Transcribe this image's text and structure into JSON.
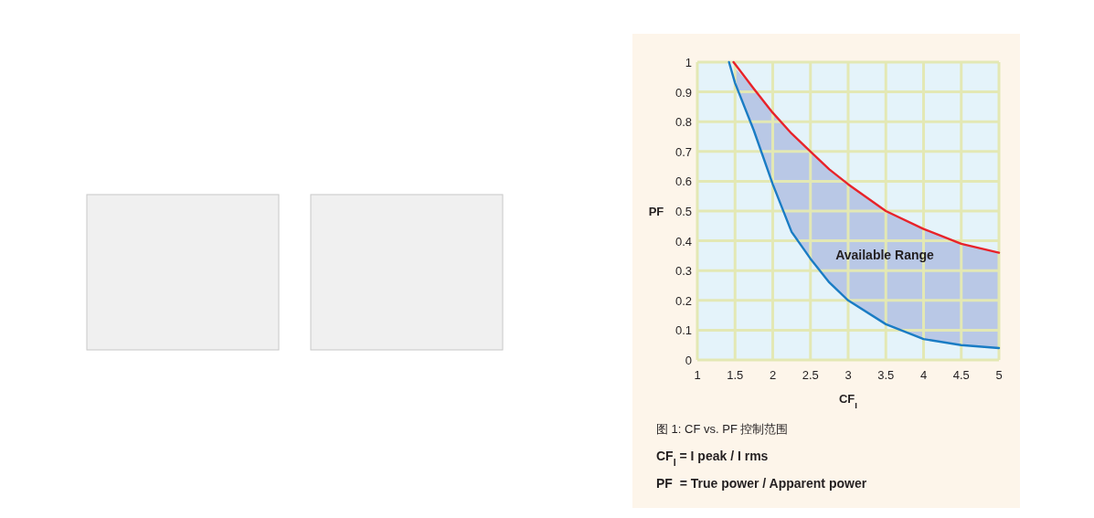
{
  "chart_data": {
    "type": "line",
    "xlabel": "CF$_{I}$",
    "ylabel": "PF",
    "xlim": [
      1,
      5
    ],
    "ylim": [
      0,
      1
    ],
    "xticks": [
      1,
      1.5,
      2,
      2.5,
      3,
      3.5,
      4,
      4.5,
      5
    ],
    "yticks": [
      0,
      0.1,
      0.2,
      0.3,
      0.4,
      0.5,
      0.6,
      0.7,
      0.8,
      0.9,
      1
    ],
    "grid": true,
    "marker": "none",
    "line_style": "solid",
    "series": [
      {
        "color": "#e8232a",
        "x": [
          1.48,
          1.75,
          2,
          2.25,
          2.5,
          2.75,
          3,
          3.5,
          4,
          4.5,
          5
        ],
        "values": [
          1,
          0.91,
          0.83,
          0.76,
          0.7,
          0.64,
          0.59,
          0.5,
          0.44,
          0.39,
          0.36
        ]
      },
      {
        "color": "#1a7cc4",
        "x": [
          1.42,
          1.5,
          1.75,
          2,
          2.25,
          2.5,
          2.75,
          3,
          3.5,
          4,
          4.5,
          5
        ],
        "values": [
          1,
          0.93,
          0.77,
          0.59,
          0.43,
          0.34,
          0.26,
          0.2,
          0.12,
          0.07,
          0.05,
          0.04
        ],
        "lower": [
          null,
          0.93,
          0.77,
          0.59,
          0.43,
          0.34,
          0.26,
          0.2,
          0.12,
          0.07,
          0.05,
          0.04
        ],
        "upper": [
          null,
          0.98,
          0.91,
          0.83,
          0.76,
          0.7,
          0.64,
          0.59,
          0.5,
          0.44,
          0.39,
          0.36
        ]
      }
    ],
    "annotations": [
      "Available Range",
      "图 1: CF vs. PF 控制范围",
      "**CF$_{I}$ = I peak / I rms**",
      "**PF  = True power / Apparent power**"
    ]
  }
}
